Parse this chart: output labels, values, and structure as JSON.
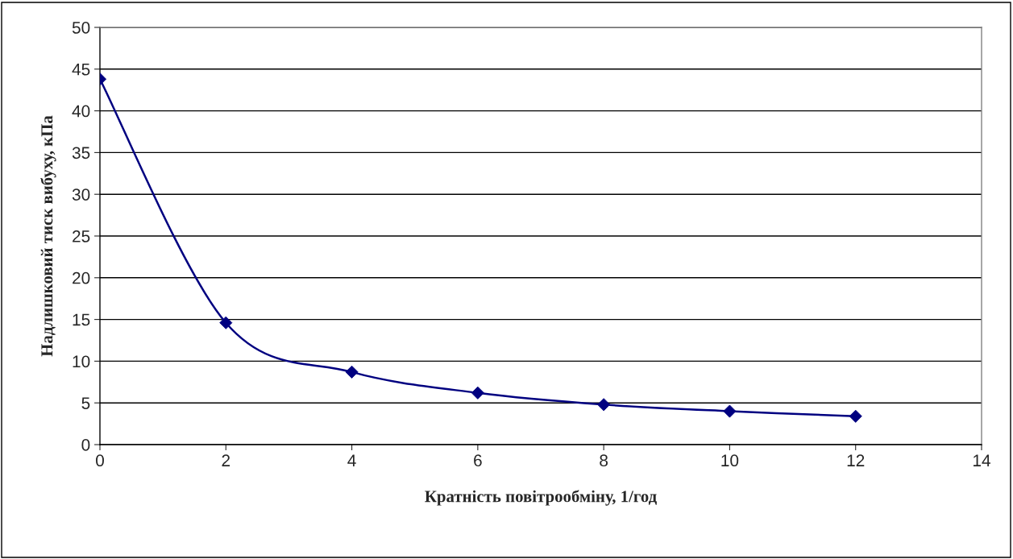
{
  "chart_data": {
    "type": "line",
    "xlabel": "Кратність повітрообміну, 1/год",
    "ylabel": "Надлишковий тиск вибуху, кПа",
    "x": [
      0,
      2,
      4,
      6,
      8,
      10,
      12
    ],
    "series": [
      {
        "color": "#000080",
        "values": [
          43.8,
          14.6,
          8.7,
          6.2,
          4.8,
          4.0,
          3.4
        ]
      }
    ],
    "xlim": [
      0,
      14
    ],
    "xticks": [
      0,
      2,
      4,
      6,
      8,
      10,
      12,
      14
    ],
    "ylim": [
      0,
      50
    ],
    "yticks": [
      0,
      5,
      10,
      15,
      20,
      25,
      30,
      35,
      40,
      45,
      50
    ],
    "grid": "y",
    "marker": "diamond",
    "line_style": "solid",
    "legend": false
  }
}
